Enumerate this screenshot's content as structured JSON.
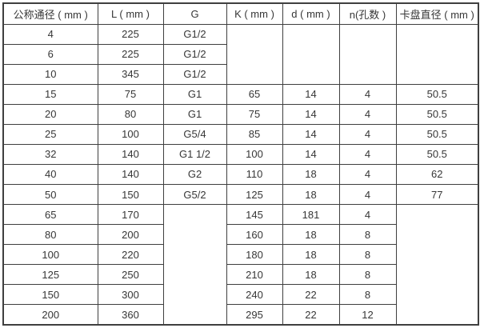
{
  "table": {
    "headers": [
      "公称通径 ( mm )",
      "L ( mm )",
      "G",
      "K ( mm )",
      "d ( mm )",
      "n(孔数 )",
      "卡盘直径 ( mm )"
    ],
    "rows": [
      [
        "4",
        "225",
        "G1/2",
        {
          "text": "",
          "rowspan": 3
        },
        {
          "text": "",
          "rowspan": 3
        },
        {
          "text": "",
          "rowspan": 3
        },
        {
          "text": "",
          "rowspan": 3
        }
      ],
      [
        "6",
        "225",
        "G1/2"
      ],
      [
        "10",
        "345",
        "G1/2"
      ],
      [
        "15",
        "75",
        "G1",
        "65",
        "14",
        "4",
        "50.5"
      ],
      [
        "20",
        "80",
        "G1",
        "75",
        "14",
        "4",
        "50.5"
      ],
      [
        "25",
        "100",
        "G5/4",
        "85",
        "14",
        "4",
        "50.5"
      ],
      [
        "32",
        "140",
        "G1  1/2",
        "100",
        "14",
        "4",
        "50.5"
      ],
      [
        "40",
        "140",
        "G2",
        "110",
        "18",
        "4",
        "62"
      ],
      [
        "50",
        "150",
        "G5/2",
        "125",
        "18",
        "4",
        "77"
      ],
      [
        "65",
        "170",
        {
          "text": "",
          "rowspan": 6
        },
        "145",
        "181",
        "4",
        {
          "text": "",
          "rowspan": 6
        }
      ],
      [
        "80",
        "200",
        "160",
        "18",
        "8"
      ],
      [
        "100",
        "220",
        "180",
        "18",
        "8"
      ],
      [
        "125",
        "250",
        "210",
        "18",
        "8"
      ],
      [
        "150",
        "300",
        "240",
        "22",
        "8"
      ],
      [
        "200",
        "360",
        "295",
        "22",
        "12"
      ]
    ],
    "colors": {
      "border": "#3f3f3f",
      "text": "#363636",
      "background": "#ffffff"
    }
  }
}
